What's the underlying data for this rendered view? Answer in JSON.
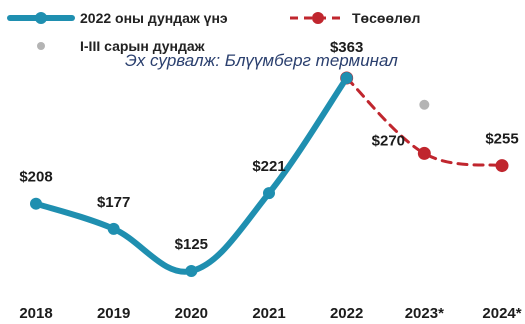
{
  "chart_data": {
    "type": "line",
    "title": "",
    "xlabel": "",
    "ylabel": "",
    "categories": [
      "2018",
      "2019",
      "2020",
      "2021",
      "2022",
      "2023*",
      "2024*"
    ],
    "ylim": [
      100,
      400
    ],
    "grid": false,
    "legend_position": "top-left",
    "source_note": "Эх сурвалж: Блүүмберг терминал",
    "series": [
      {
        "name": "2022 оны дундаж үнэ",
        "color": "#1f8fb0",
        "style": "solid",
        "values": [
          208,
          177,
          125,
          221,
          363,
          null,
          null
        ],
        "labels": [
          "$208",
          "$177",
          "$125",
          "$221",
          "$363",
          "",
          ""
        ]
      },
      {
        "name": "Төсөөлөл",
        "color": "#c0262e",
        "style": "dashed",
        "values": [
          null,
          null,
          null,
          null,
          363,
          270,
          255
        ],
        "labels": [
          "",
          "",
          "",
          "",
          "",
          "$270",
          "$255"
        ]
      },
      {
        "name": "I-III сарын дундаж",
        "color": "#b4b4b4",
        "style": "point",
        "values": [
          null,
          null,
          null,
          null,
          null,
          330,
          null
        ],
        "labels": [
          "",
          "",
          "",
          "",
          "",
          "",
          ""
        ]
      }
    ]
  }
}
